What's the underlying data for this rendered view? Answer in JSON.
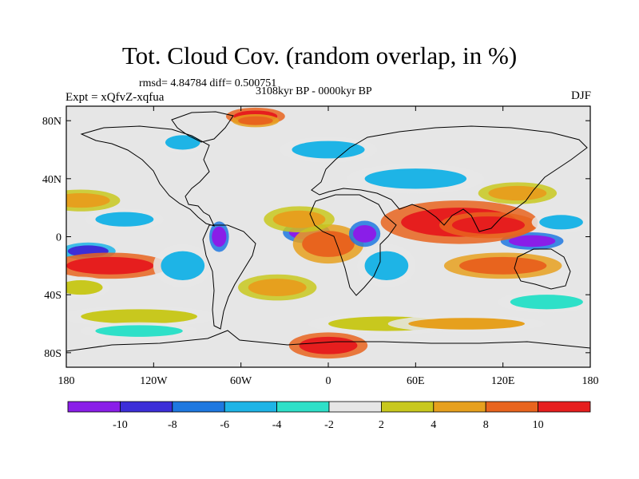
{
  "chart_data": {
    "type": "heatmap",
    "title": "Tot. Cloud Cov. (random overlap, in %)",
    "stats_line": "rmsd= 4.84784 diff= 0.500751",
    "period": "3108kyr BP - 0000kyr BP",
    "experiment": "Expt = xQfvZ-xqfua",
    "season": "DJF",
    "x_ticks": [
      "180",
      "120W",
      "60W",
      "0",
      "60E",
      "120E",
      "180"
    ],
    "x_tick_lon": [
      -180,
      -120,
      -60,
      0,
      60,
      120,
      180
    ],
    "y_ticks": [
      "80N",
      "40N",
      "0",
      "40S",
      "80S"
    ],
    "y_tick_lat": [
      80,
      40,
      0,
      -40,
      -80
    ],
    "xlim": [
      -180,
      180
    ],
    "ylim": [
      -90,
      90
    ],
    "colorbar": {
      "levels": [
        "-10",
        "-8",
        "-6",
        "-4",
        "-2",
        "2",
        "4",
        "8",
        "10"
      ],
      "colors": [
        "#8a1ee8",
        "#3c2ed8",
        "#1e78e0",
        "#1eb4e6",
        "#2ee0c8",
        "#e6e6e6",
        "#c8c81e",
        "#e6a01e",
        "#e8641e",
        "#e61e1e"
      ]
    },
    "anomalies": [
      {
        "lon": -15,
        "lat": 3,
        "rx": 12,
        "ry": 5,
        "value": -11
      },
      {
        "lon": 140,
        "lat": -3,
        "rx": 16,
        "ry": 4,
        "value": -11
      },
      {
        "lon": -75,
        "lat": 0,
        "rx": 5,
        "ry": 7,
        "value": -11
      },
      {
        "lon": -165,
        "lat": -10,
        "rx": 14,
        "ry": 4,
        "value": -9
      },
      {
        "lon": 90,
        "lat": 10,
        "rx": 40,
        "ry": 10,
        "value": 11
      },
      {
        "lon": 110,
        "lat": 8,
        "rx": 25,
        "ry": 6,
        "value": 12
      },
      {
        "lon": -150,
        "lat": -20,
        "rx": 30,
        "ry": 6,
        "value": 11
      },
      {
        "lon": 120,
        "lat": -20,
        "rx": 30,
        "ry": 6,
        "value": 9
      },
      {
        "lon": 0,
        "lat": -5,
        "rx": 18,
        "ry": 9,
        "value": 9
      },
      {
        "lon": -20,
        "lat": 12,
        "rx": 18,
        "ry": 6,
        "value": 5
      },
      {
        "lon": 40,
        "lat": -20,
        "rx": 15,
        "ry": 10,
        "value": -5
      },
      {
        "lon": 25,
        "lat": 2,
        "rx": 8,
        "ry": 6,
        "value": -11
      },
      {
        "lon": 0,
        "lat": -75,
        "rx": 20,
        "ry": 6,
        "value": 11
      },
      {
        "lon": -100,
        "lat": 65,
        "rx": 12,
        "ry": 5,
        "value": -5
      },
      {
        "lon": -50,
        "lat": 83,
        "rx": 15,
        "ry": 4,
        "value": 11
      },
      {
        "lon": -50,
        "lat": 80,
        "rx": 12,
        "ry": 3,
        "value": 9
      },
      {
        "lon": 0,
        "lat": 60,
        "rx": 25,
        "ry": 6,
        "value": -5
      },
      {
        "lon": 60,
        "lat": 40,
        "rx": 35,
        "ry": 7,
        "value": -5
      },
      {
        "lon": 130,
        "lat": 30,
        "rx": 20,
        "ry": 5,
        "value": 5
      },
      {
        "lon": -170,
        "lat": 25,
        "rx": 20,
        "ry": 5,
        "value": 5
      },
      {
        "lon": -140,
        "lat": 12,
        "rx": 20,
        "ry": 5,
        "value": -5
      },
      {
        "lon": -100,
        "lat": -20,
        "rx": 15,
        "ry": 10,
        "value": -5
      },
      {
        "lon": -35,
        "lat": -35,
        "rx": 20,
        "ry": 6,
        "value": 5
      },
      {
        "lon": 40,
        "lat": -60,
        "rx": 40,
        "ry": 5,
        "value": 3
      },
      {
        "lon": -130,
        "lat": -55,
        "rx": 40,
        "ry": 5,
        "value": 3
      },
      {
        "lon": -130,
        "lat": -65,
        "rx": 30,
        "ry": 4,
        "value": -3
      },
      {
        "lon": 150,
        "lat": -45,
        "rx": 25,
        "ry": 5,
        "value": -3
      },
      {
        "lon": 95,
        "lat": -60,
        "rx": 40,
        "ry": 4,
        "value": 4
      },
      {
        "lon": 160,
        "lat": 10,
        "rx": 15,
        "ry": 5,
        "value": -5
      },
      {
        "lon": -170,
        "lat": -35,
        "rx": 15,
        "ry": 5,
        "value": 3
      }
    ]
  }
}
